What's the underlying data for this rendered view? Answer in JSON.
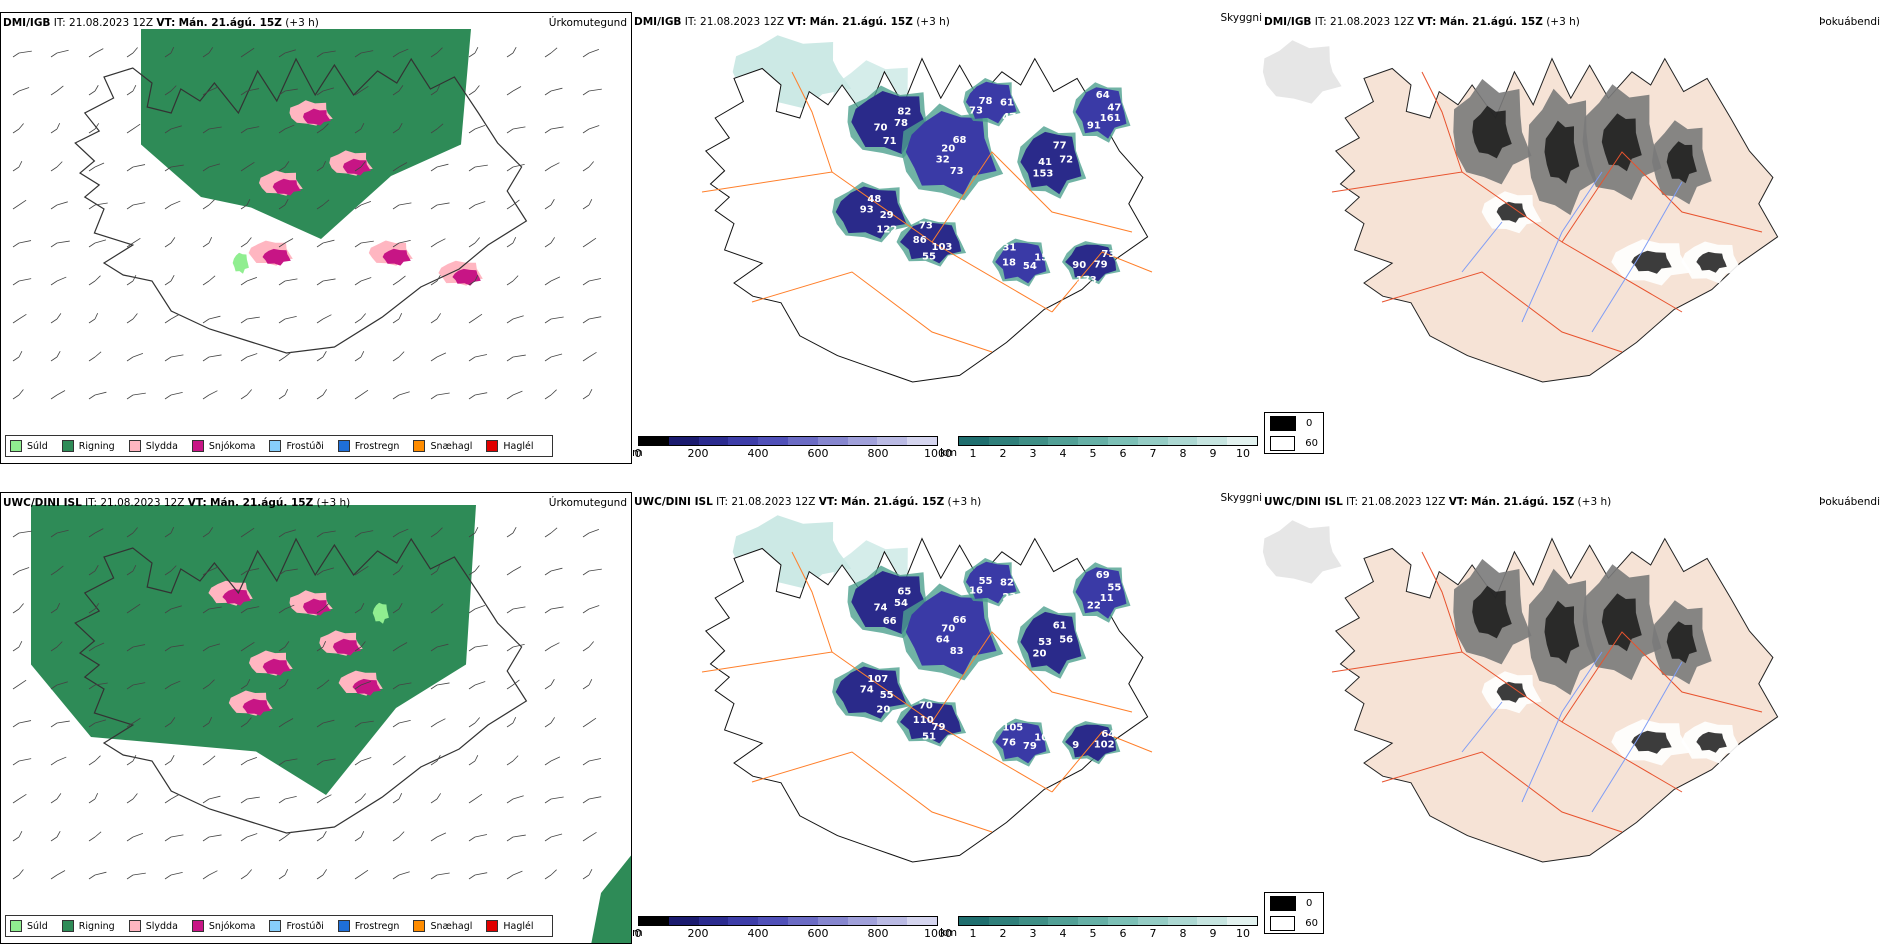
{
  "rows": [
    {
      "model": "DMI/IGB",
      "it_label": "IT:",
      "it_value": "21.08.2023 12Z",
      "vt_label": "VT:",
      "vt_value": "Mán. 21.ágú. 15Z",
      "lead": "(+3 h)",
      "precip_title": "Úrkomutegund",
      "vis_title": "Skyggni",
      "fog_title": "Þokuábendi",
      "vis_labels": [
        "78",
        "32",
        "48",
        "47",
        "41",
        "47",
        "55",
        "31",
        "79",
        "70",
        "68",
        "122",
        "78",
        "72",
        "91",
        "73",
        "54",
        "90",
        "82",
        "73",
        "93",
        "61",
        "153",
        "64",
        "103",
        "18",
        "73",
        "71",
        "20",
        "29",
        "73",
        "77",
        "161",
        "86",
        "151",
        "173"
      ],
      "fog_legend": [
        "0",
        "60"
      ]
    },
    {
      "model": "UWC/DINI ISL",
      "it_label": "IT:",
      "it_value": "21.08.2023 12Z",
      "vt_label": "VT:",
      "vt_value": "Mán. 21.ágú. 15Z",
      "lead": "(+3 h)",
      "precip_title": "Úrkomutegund",
      "vis_title": "Skyggni",
      "fog_title": "Þokuábendi",
      "vis_labels": [
        "54",
        "64",
        "107",
        "23",
        "53",
        "55",
        "51",
        "105",
        "102",
        "74",
        "66",
        "20",
        "55",
        "56",
        "22",
        "70",
        "79",
        "9",
        "65",
        "83",
        "74",
        "82",
        "20",
        "69",
        "79",
        "76",
        "64",
        "66",
        "70",
        "55",
        "16",
        "61",
        "11",
        "110",
        "10"
      ],
      "fog_legend": [
        "0",
        "60"
      ]
    }
  ],
  "precip_legend": [
    {
      "label": "Súld",
      "color": "#90ee90"
    },
    {
      "label": "Rigning",
      "color": "#2e8b57"
    },
    {
      "label": "Slydda",
      "color": "#ffb6c1"
    },
    {
      "label": "Snjókoma",
      "color": "#c71585"
    },
    {
      "label": "Frostúði",
      "color": "#87cefa"
    },
    {
      "label": "Frostregn",
      "color": "#1e6fd9"
    },
    {
      "label": "Snæhagl",
      "color": "#ff8c00"
    },
    {
      "label": "Haglél",
      "color": "#e00000"
    }
  ],
  "height_bar": {
    "unit": "m",
    "ticks": [
      "0",
      "200",
      "400",
      "600",
      "800",
      "1000"
    ],
    "colors": [
      "#000000",
      "#1a1a6e",
      "#2b2b8f",
      "#3d3da8",
      "#5050b8",
      "#6b6bc4",
      "#8686cf",
      "#a0a0da",
      "#babae4",
      "#d5d5ef"
    ]
  },
  "km_bar": {
    "unit": "km",
    "ticks": [
      "1",
      "2",
      "3",
      "4",
      "5",
      "6",
      "7",
      "8",
      "9",
      "10"
    ],
    "colors": [
      "#1f6e6e",
      "#2f7f7a",
      "#3f8f86",
      "#52a096",
      "#66b0a6",
      "#7cc0b6",
      "#94ccc4",
      "#acd8d2",
      "#c6e5e0",
      "#e2f2ef"
    ]
  },
  "colors": {
    "rain": "#2e8b57",
    "drizzle": "#90ee90",
    "sleet": "#ffb6c1",
    "snow": "#c71585",
    "road": "#ff7f2a",
    "fog_land": "#f6e3d6",
    "fog_road": "#e8532e",
    "river": "#7f9cf5"
  }
}
